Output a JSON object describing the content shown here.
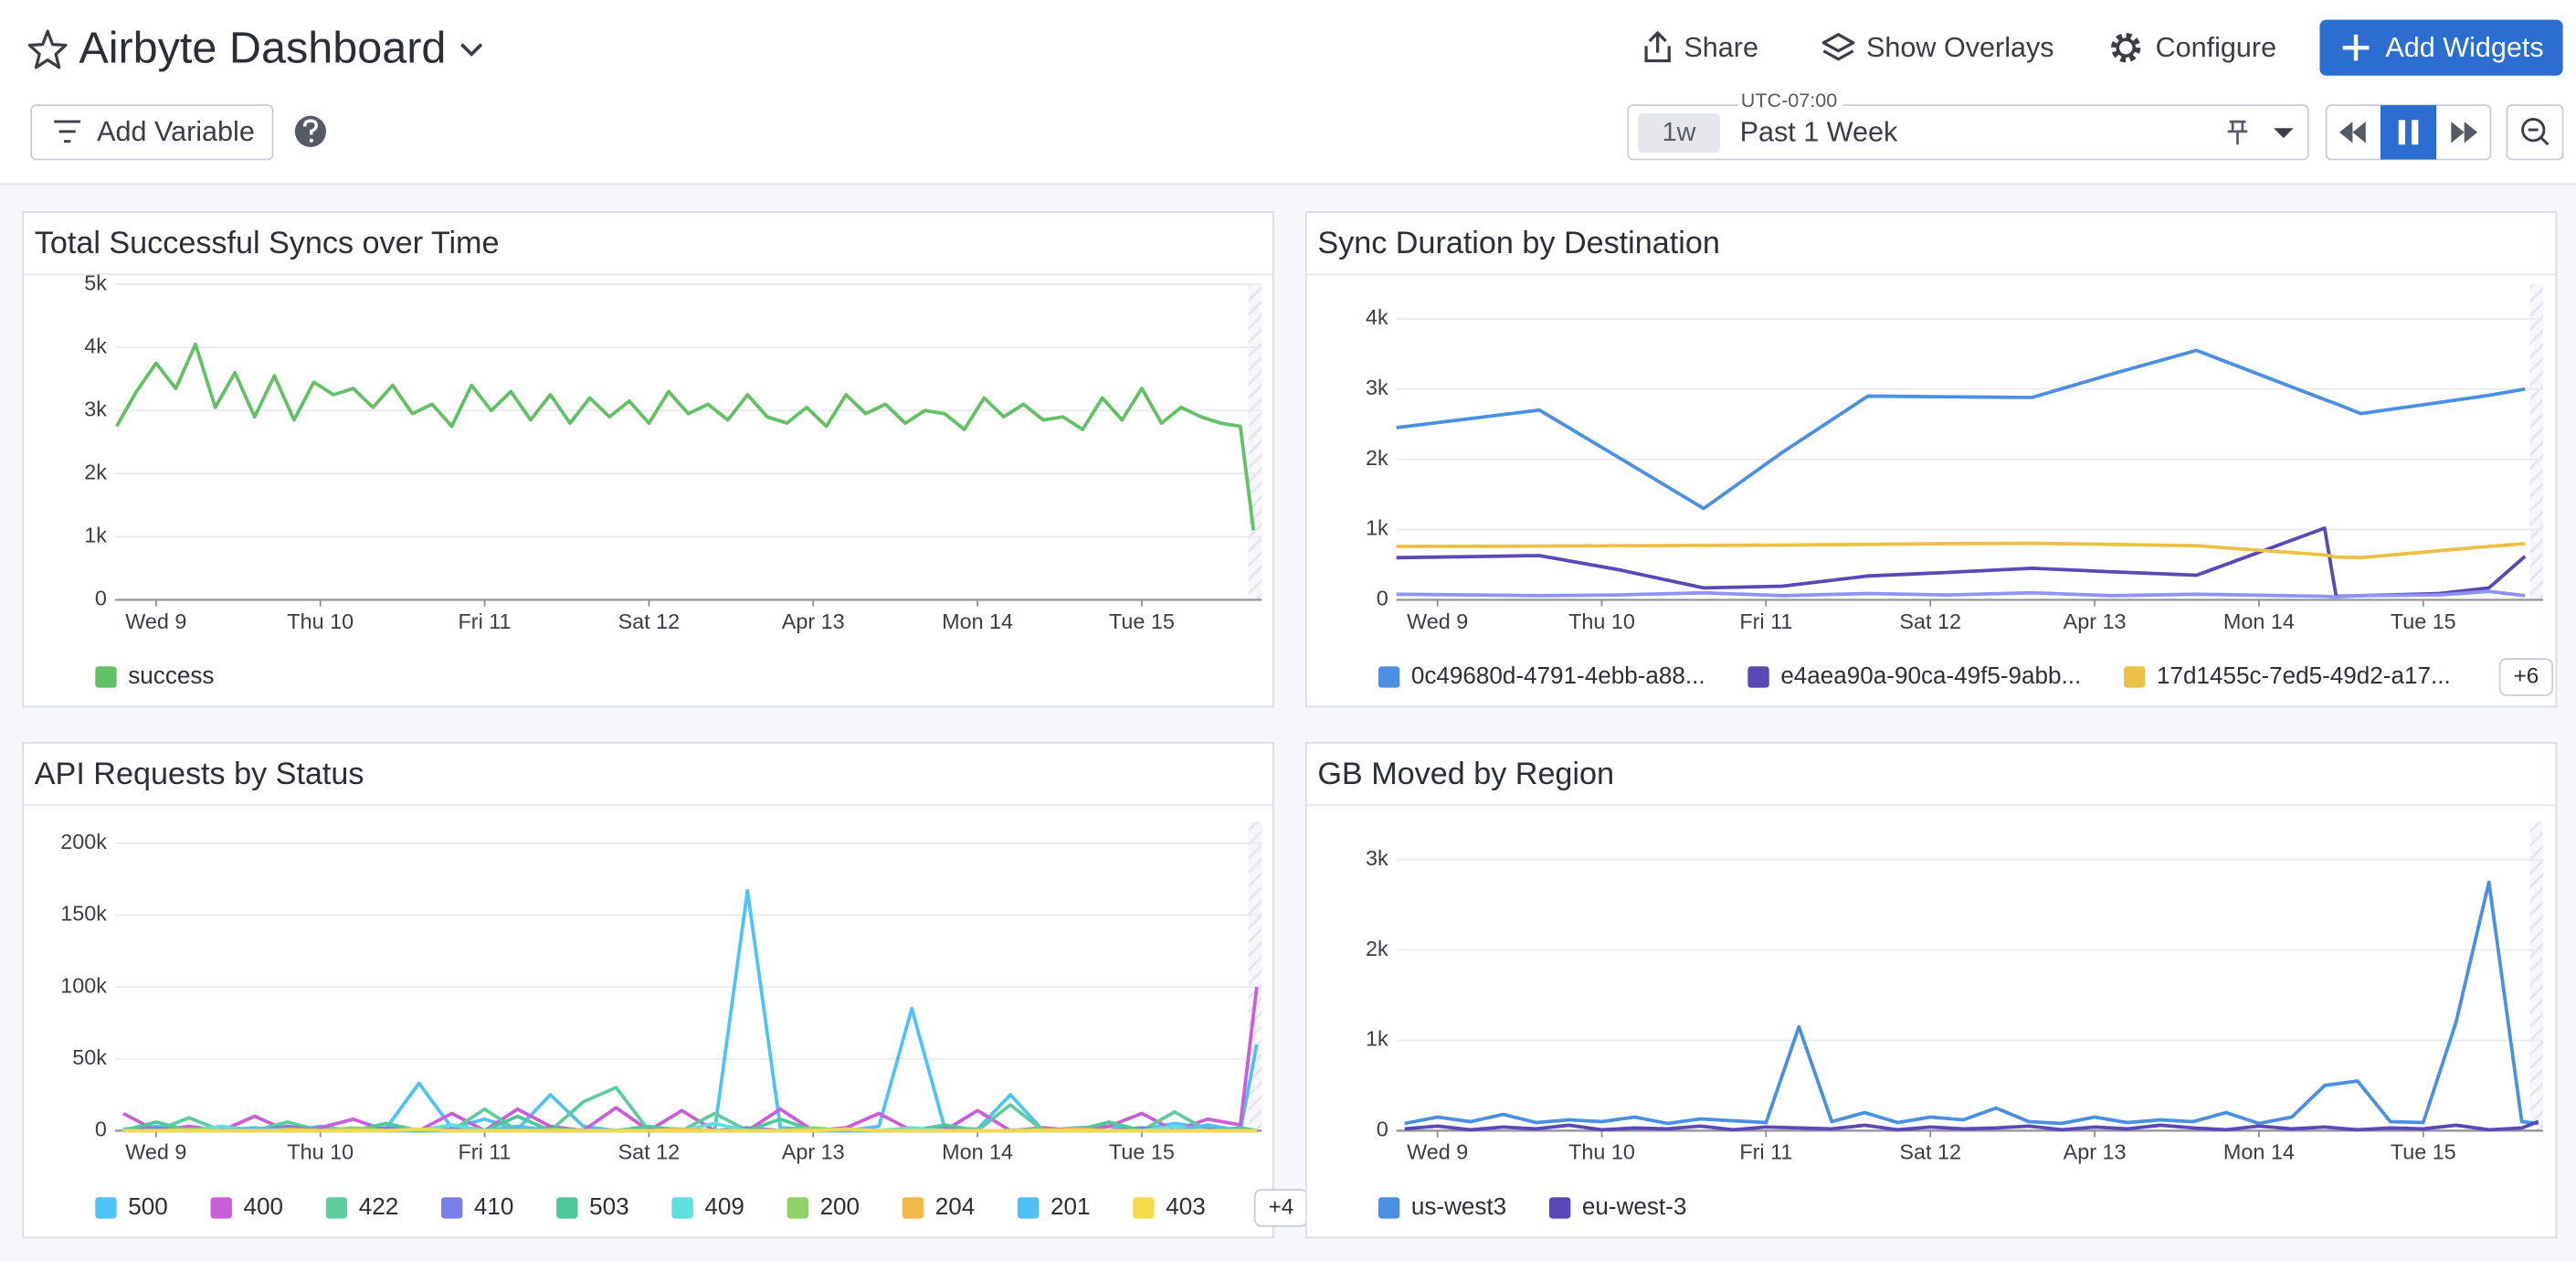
{
  "header": {
    "title": "Airbyte Dashboard",
    "actions": [
      "Share",
      "Show Overlays",
      "Configure",
      "Add Widgets"
    ]
  },
  "toolbar": {
    "add_variable": "Add Variable",
    "timezone": "UTC-07:00",
    "range_badge": "1w",
    "range_label": "Past 1 Week"
  },
  "chart_data": [
    {
      "type": "line",
      "title": "Total Successful Syncs over Time",
      "grid": true,
      "xlim": [
        8.75,
        15.73
      ],
      "xticks": [
        {
          "value": 9,
          "label": "Wed 9"
        },
        {
          "value": 10,
          "label": "Thu 10"
        },
        {
          "value": 11,
          "label": "Fri 11"
        },
        {
          "value": 12,
          "label": "Sat 12"
        },
        {
          "value": 13,
          "label": "Apr 13"
        },
        {
          "value": 14,
          "label": "Mon 14"
        },
        {
          "value": 15,
          "label": "Tue 15"
        }
      ],
      "ylim": [
        0,
        5000
      ],
      "yticks": [
        0,
        {
          "value": 1000,
          "label": "1k"
        },
        {
          "value": 2000,
          "label": "2k"
        },
        {
          "value": 3000,
          "label": "3k"
        },
        {
          "value": 4000,
          "label": "4k"
        },
        {
          "value": 5000,
          "label": "5k"
        }
      ],
      "x": [
        8.76,
        8.88,
        9.0,
        9.12,
        9.24,
        9.36,
        9.48,
        9.6,
        9.72,
        9.84,
        9.96,
        10.08,
        10.2,
        10.32,
        10.44,
        10.56,
        10.68,
        10.8,
        10.92,
        11.04,
        11.16,
        11.28,
        11.4,
        11.52,
        11.64,
        11.76,
        11.88,
        12.0,
        12.12,
        12.24,
        12.36,
        12.48,
        12.6,
        12.72,
        12.84,
        12.96,
        13.08,
        13.2,
        13.32,
        13.44,
        13.56,
        13.68,
        13.8,
        13.92,
        14.04,
        14.16,
        14.28,
        14.4,
        14.52,
        14.64,
        14.76,
        14.88,
        15.0,
        15.12,
        15.24,
        15.36,
        15.48,
        15.6,
        15.68
      ],
      "series": [
        {
          "name": "success",
          "color": "#62c065",
          "values": [
            2750,
            3300,
            3750,
            3350,
            4050,
            3050,
            3600,
            2900,
            3550,
            2850,
            3450,
            3250,
            3350,
            3050,
            3400,
            2950,
            3100,
            2750,
            3400,
            3000,
            3300,
            2850,
            3250,
            2800,
            3200,
            2900,
            3150,
            2800,
            3300,
            2950,
            3100,
            2850,
            3250,
            2900,
            2800,
            3050,
            2750,
            3250,
            2950,
            3100,
            2800,
            3000,
            2950,
            2700,
            3200,
            2900,
            3100,
            2850,
            2900,
            2700,
            3200,
            2850,
            3350,
            2800,
            3050,
            2900,
            2800,
            2750,
            1100
          ]
        }
      ]
    },
    {
      "type": "line",
      "title": "Sync Duration by Destination",
      "grid": true,
      "xlim": [
        8.75,
        15.73
      ],
      "xticks": [
        {
          "value": 9,
          "label": "Wed 9"
        },
        {
          "value": 10,
          "label": "Thu 10"
        },
        {
          "value": 11,
          "label": "Fri 11"
        },
        {
          "value": 12,
          "label": "Sat 12"
        },
        {
          "value": 13,
          "label": "Apr 13"
        },
        {
          "value": 14,
          "label": "Mon 14"
        },
        {
          "value": 15,
          "label": "Tue 15"
        }
      ],
      "ylim": [
        0,
        4490
      ],
      "yticks": [
        0,
        {
          "value": 1000,
          "label": "1k"
        },
        {
          "value": 2000,
          "label": "2k"
        },
        {
          "value": 3000,
          "label": "3k"
        },
        {
          "value": 4000,
          "label": "4k"
        }
      ],
      "x": [
        8.75,
        9.62,
        10.1,
        10.62,
        11.1,
        11.62,
        12.1,
        12.62,
        13.1,
        13.62,
        14.4,
        14.47,
        14.62,
        15.1,
        15.4,
        15.62
      ],
      "series": [
        {
          "name": "0c49680d-4791-4ebb-a88...",
          "color": "#4a90e2",
          "values": [
            2450,
            2700,
            2030,
            1300,
            2100,
            2900,
            2890,
            2880,
            3210,
            3550,
            2850,
            2790,
            2650,
            2810,
            2910,
            3000
          ]
        },
        {
          "name": "e4aea90a-90ca-49f5-9abb...",
          "color": "#5b47b5",
          "values": [
            600,
            630,
            430,
            170,
            195,
            340,
            390,
            450,
            400,
            350,
            1020,
            50,
            60,
            90,
            170,
            620
          ]
        },
        {
          "name": "17d1455c-7ed5-49d2-a17...",
          "color": "#ecc046",
          "values": [
            760,
            765,
            770,
            775,
            780,
            790,
            800,
            805,
            790,
            770,
            640,
            610,
            600,
            700,
            760,
            800
          ]
        },
        {
          "color": "#8f93f2",
          "values": [
            80,
            60,
            70,
            100,
            60,
            90,
            70,
            100,
            60,
            80,
            50,
            40,
            60,
            70,
            120,
            60
          ]
        }
      ],
      "legend_more": "+6"
    },
    {
      "type": "line",
      "title": "API Requests by Status",
      "grid": true,
      "xlim": [
        8.75,
        15.73
      ],
      "xticks": [
        {
          "value": 9,
          "label": "Wed 9"
        },
        {
          "value": 10,
          "label": "Thu 10"
        },
        {
          "value": 11,
          "label": "Fri 11"
        },
        {
          "value": 12,
          "label": "Sat 12"
        },
        {
          "value": 13,
          "label": "Apr 13"
        },
        {
          "value": 14,
          "label": "Mon 14"
        },
        {
          "value": 15,
          "label": "Tue 15"
        }
      ],
      "ylim": [
        0,
        215000
      ],
      "yticks": [
        0,
        {
          "value": 50000,
          "label": "50k"
        },
        {
          "value": 100000,
          "label": "100k"
        },
        {
          "value": 150000,
          "label": "150k"
        },
        {
          "value": 200000,
          "label": "200k"
        }
      ],
      "x": [
        8.8,
        9.0,
        9.2,
        9.4,
        9.6,
        9.8,
        10.0,
        10.2,
        10.4,
        10.6,
        10.8,
        11.0,
        11.2,
        11.4,
        11.6,
        11.8,
        12.0,
        12.2,
        12.4,
        12.6,
        12.8,
        13.0,
        13.2,
        13.4,
        13.6,
        13.8,
        14.0,
        14.2,
        14.4,
        14.6,
        14.8,
        15.0,
        15.2,
        15.4,
        15.6,
        15.7
      ],
      "series": [
        {
          "name": "500",
          "color": "#4fc3f7",
          "values": [
            1000,
            3000,
            0,
            2000,
            1000,
            0,
            3000,
            0,
            1500,
            33000,
            2000,
            8000,
            1000,
            25000,
            3000,
            0,
            2000,
            1000,
            0,
            167000,
            2000,
            1000,
            0,
            3000,
            85000,
            2000,
            1000,
            25000,
            0,
            2000,
            3000,
            1000,
            5000,
            2000,
            0,
            60000
          ]
        },
        {
          "name": "400",
          "color": "#c95ed8",
          "values": [
            12000,
            0,
            3000,
            0,
            10000,
            0,
            2000,
            8000,
            0,
            0,
            12000,
            0,
            15000,
            3000,
            0,
            16000,
            0,
            14000,
            0,
            0,
            15000,
            0,
            2000,
            12000,
            0,
            0,
            14000,
            0,
            2000,
            0,
            3000,
            12000,
            0,
            8000,
            4000,
            100000
          ]
        },
        {
          "name": "422",
          "color": "#5fcca0",
          "values": [
            0,
            0,
            9000,
            0,
            0,
            6000,
            0,
            0,
            0,
            0,
            0,
            15000,
            0,
            0,
            20000,
            30000,
            0,
            0,
            12000,
            0,
            0,
            0,
            0,
            0,
            0,
            0,
            0,
            18000,
            0,
            0,
            0,
            0,
            13000,
            0,
            0,
            0
          ]
        },
        {
          "name": "410",
          "color": "#7b7fe8",
          "values": [
            0,
            2000,
            0,
            1000,
            0,
            3000,
            0,
            0,
            2000,
            0,
            1000,
            0,
            0,
            2000,
            0,
            0,
            1000,
            0,
            0,
            2000,
            0,
            0,
            1000,
            0,
            0,
            3000,
            0,
            0,
            1000,
            0,
            0,
            2000,
            0,
            1000,
            0,
            0
          ]
        },
        {
          "name": "503",
          "color": "#4ec79a",
          "values": [
            0,
            6000,
            0,
            0,
            2000,
            0,
            0,
            0,
            5000,
            0,
            0,
            0,
            10000,
            0,
            0,
            0,
            3000,
            0,
            0,
            0,
            8000,
            0,
            0,
            0,
            0,
            4000,
            0,
            0,
            0,
            0,
            6000,
            0,
            0,
            0,
            2000,
            0
          ]
        },
        {
          "name": "409",
          "color": "#5ee0e0",
          "values": [
            0,
            0,
            0,
            3000,
            0,
            0,
            0,
            0,
            0,
            0,
            4000,
            0,
            0,
            0,
            0,
            0,
            0,
            0,
            5000,
            0,
            0,
            0,
            0,
            0,
            2000,
            0,
            0,
            0,
            0,
            0,
            0,
            0,
            3000,
            0,
            0,
            0
          ]
        },
        {
          "name": "200",
          "color": "#8fd16a",
          "values": [
            0,
            0,
            1000,
            0,
            0,
            0,
            0,
            2000,
            0,
            0,
            0,
            0,
            0,
            1000,
            0,
            0,
            0,
            0,
            0,
            0,
            0,
            2000,
            0,
            0,
            0,
            0,
            0,
            0,
            1000,
            0,
            0,
            0,
            0,
            0,
            0,
            0
          ]
        },
        {
          "name": "204",
          "color": "#f2b84b",
          "values": [
            0,
            0,
            0,
            0,
            0,
            1000,
            0,
            0,
            0,
            0,
            0,
            0,
            0,
            0,
            0,
            0,
            0,
            1000,
            0,
            0,
            0,
            0,
            0,
            0,
            0,
            0,
            0,
            0,
            0,
            1000,
            0,
            0,
            0,
            0,
            0,
            0
          ]
        },
        {
          "name": "201",
          "color": "#53bff0",
          "values": [
            0,
            0,
            0,
            0,
            2000,
            0,
            0,
            0,
            0,
            0,
            0,
            0,
            3000,
            0,
            0,
            0,
            0,
            0,
            0,
            0,
            0,
            0,
            0,
            0,
            0,
            0,
            0,
            0,
            0,
            0,
            0,
            0,
            0,
            4000,
            0,
            0
          ]
        },
        {
          "name": "403",
          "color": "#f7d94c",
          "values": [
            0,
            0,
            0,
            0,
            0,
            0,
            0,
            0,
            0,
            1000,
            0,
            0,
            0,
            0,
            0,
            0,
            0,
            0,
            0,
            0,
            0,
            0,
            1000,
            0,
            0,
            0,
            0,
            0,
            0,
            0,
            0,
            0,
            0,
            0,
            0,
            0
          ]
        }
      ],
      "legend_more": "+4"
    },
    {
      "type": "line",
      "title": "GB Moved by Region",
      "grid": true,
      "xlim": [
        8.75,
        15.73
      ],
      "xticks": [
        {
          "value": 9,
          "label": "Wed 9"
        },
        {
          "value": 10,
          "label": "Thu 10"
        },
        {
          "value": 11,
          "label": "Fri 11"
        },
        {
          "value": 12,
          "label": "Sat 12"
        },
        {
          "value": 13,
          "label": "Apr 13"
        },
        {
          "value": 14,
          "label": "Mon 14"
        },
        {
          "value": 15,
          "label": "Tue 15"
        }
      ],
      "ylim": [
        0,
        3420
      ],
      "yticks": [
        0,
        {
          "value": 1000,
          "label": "1k"
        },
        {
          "value": 2000,
          "label": "2k"
        },
        {
          "value": 3000,
          "label": "3k"
        }
      ],
      "x": [
        8.8,
        9.0,
        9.2,
        9.4,
        9.6,
        9.8,
        10.0,
        10.2,
        10.4,
        10.6,
        10.8,
        11.0,
        11.2,
        11.4,
        11.6,
        11.8,
        12.0,
        12.2,
        12.4,
        12.6,
        12.8,
        13.0,
        13.2,
        13.4,
        13.6,
        13.8,
        14.0,
        14.2,
        14.4,
        14.6,
        14.8,
        15.0,
        15.2,
        15.4,
        15.6,
        15.7
      ],
      "series": [
        {
          "name": "us-west3",
          "color": "#4a90e2",
          "values": [
            80,
            150,
            100,
            180,
            90,
            120,
            100,
            150,
            80,
            130,
            110,
            90,
            1150,
            100,
            200,
            90,
            150,
            120,
            250,
            100,
            80,
            150,
            90,
            120,
            100,
            200,
            80,
            150,
            500,
            550,
            100,
            90,
            1200,
            2750,
            100,
            80
          ]
        },
        {
          "name": "eu-west-3",
          "color": "#5b47b5",
          "values": [
            20,
            50,
            10,
            40,
            20,
            60,
            10,
            30,
            20,
            50,
            10,
            40,
            30,
            20,
            60,
            10,
            40,
            20,
            30,
            50,
            10,
            40,
            20,
            60,
            30,
            10,
            50,
            20,
            40,
            10,
            30,
            20,
            60,
            10,
            30,
            100
          ]
        }
      ]
    }
  ]
}
